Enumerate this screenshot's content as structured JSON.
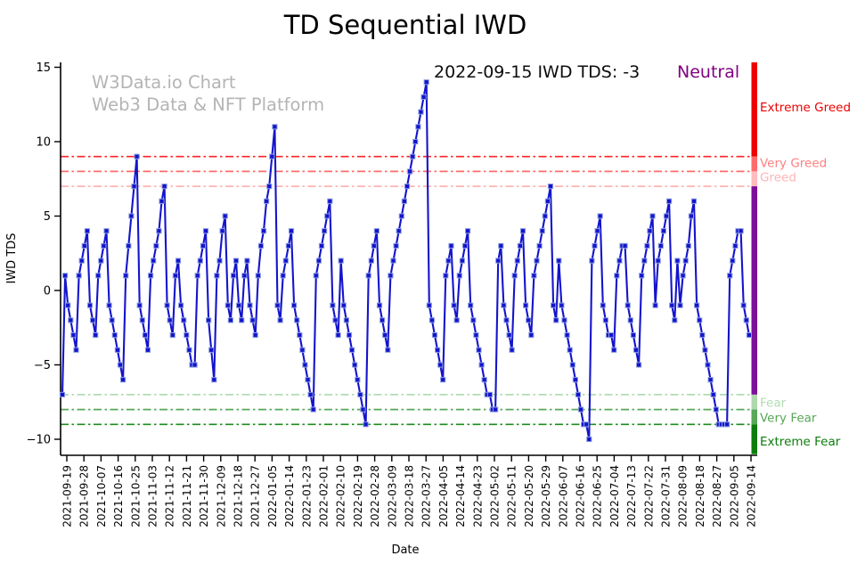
{
  "title": "TD Sequential IWD",
  "watermark": {
    "line1": "W3Data.io Chart",
    "line2": "Web3 Data & NFT Platform",
    "color": "#b4b4b4"
  },
  "annotation": {
    "text": "2022-09-15 IWD TDS: -3",
    "sentiment": "Neutral",
    "sentiment_color": "#800080"
  },
  "axes": {
    "ylabel": "IWD TDS",
    "xlabel": "Date",
    "y_ticks": [
      15,
      10,
      5,
      0,
      -5,
      -10
    ]
  },
  "chart_data": {
    "type": "line",
    "title": "TD Sequential IWD",
    "xlabel": "Date",
    "ylabel": "IWD TDS",
    "ylim": [
      -11,
      15.3
    ],
    "series_color": "#1414cc",
    "marker": "square",
    "marker_edge_color": "#8d9fe0",
    "x_tick_labels": [
      "2021-09-19",
      "2021-09-28",
      "2021-10-07",
      "2021-10-16",
      "2021-10-25",
      "2021-11-03",
      "2021-11-12",
      "2021-11-21",
      "2021-11-30",
      "2021-12-09",
      "2021-12-18",
      "2021-12-27",
      "2022-01-05",
      "2022-01-14",
      "2022-01-23",
      "2022-02-01",
      "2022-02-10",
      "2022-02-19",
      "2022-02-28",
      "2022-03-09",
      "2022-03-18",
      "2022-03-27",
      "2022-04-05",
      "2022-04-14",
      "2022-04-23",
      "2022-05-02",
      "2022-05-11",
      "2022-05-20",
      "2022-05-29",
      "2022-06-07",
      "2022-06-16",
      "2022-06-25",
      "2022-07-04",
      "2022-07-13",
      "2022-07-22",
      "2022-07-31",
      "2022-08-09",
      "2022-08-18",
      "2022-08-27",
      "2022-09-05",
      "2022-09-14"
    ],
    "values": [
      -7,
      1,
      -1,
      -2,
      -3,
      -4,
      1,
      2,
      3,
      4,
      -1,
      -2,
      -3,
      1,
      2,
      3,
      4,
      -1,
      -2,
      -3,
      -4,
      -5,
      -6,
      1,
      3,
      5,
      7,
      9,
      -1,
      -2,
      -3,
      -4,
      1,
      2,
      3,
      4,
      6,
      7,
      -1,
      -2,
      -3,
      1,
      2,
      -1,
      -2,
      -3,
      -4,
      -5,
      -5,
      1,
      2,
      3,
      4,
      -2,
      -4,
      -6,
      1,
      2,
      4,
      5,
      -1,
      -2,
      1,
      2,
      -1,
      -2,
      1,
      2,
      -1,
      -2,
      -3,
      1,
      3,
      4,
      6,
      7,
      9,
      11,
      -1,
      -2,
      1,
      2,
      3,
      4,
      -1,
      -2,
      -3,
      -4,
      -5,
      -6,
      -7,
      -8,
      1,
      2,
      3,
      4,
      5,
      6,
      -1,
      -2,
      -3,
      2,
      -1,
      -2,
      -3,
      -4,
      -5,
      -6,
      -7,
      -8,
      -9,
      1,
      2,
      3,
      4,
      -1,
      -2,
      -3,
      -4,
      1,
      2,
      3,
      4,
      5,
      6,
      7,
      8,
      9,
      10,
      11,
      12,
      13,
      14,
      -1,
      -2,
      -3,
      -4,
      -5,
      -6,
      1,
      2,
      3,
      -1,
      -2,
      1,
      2,
      3,
      4,
      -1,
      -2,
      -3,
      -4,
      -5,
      -6,
      -7,
      -7,
      -8,
      -8,
      2,
      3,
      -1,
      -2,
      -3,
      -4,
      1,
      2,
      3,
      4,
      -1,
      -2,
      -3,
      1,
      2,
      3,
      4,
      5,
      6,
      7,
      -1,
      -2,
      2,
      -1,
      -2,
      -3,
      -4,
      -5,
      -6,
      -7,
      -8,
      -9,
      -9,
      -10,
      2,
      3,
      4,
      5,
      -1,
      -2,
      -3,
      -3,
      -4,
      1,
      2,
      3,
      3,
      -1,
      -2,
      -3,
      -4,
      -5,
      1,
      2,
      3,
      4,
      5,
      -1,
      2,
      3,
      4,
      5,
      6,
      -1,
      -2,
      2,
      -1,
      1,
      2,
      3,
      5,
      6,
      -1,
      -2,
      -3,
      -4,
      -5,
      -6,
      -7,
      -8,
      -9,
      -9,
      -9,
      -9,
      1,
      2,
      3,
      4,
      4,
      -1,
      -2,
      -3
    ],
    "thresholds": [
      {
        "value": 9,
        "color": "#ff2222"
      },
      {
        "value": 8,
        "color": "#ff6b6b"
      },
      {
        "value": 7,
        "color": "#ffb4b4"
      },
      {
        "value": -7,
        "color": "#b2dcb2"
      },
      {
        "value": -8,
        "color": "#57a857"
      },
      {
        "value": -9,
        "color": "#1d8c1d"
      }
    ],
    "zones": [
      {
        "label": "Extreme Greed",
        "color": "#ee0000",
        "y_value": 12.3
      },
      {
        "label": "Very Greed",
        "color": "#ff7f7f",
        "y_value": 8.55
      },
      {
        "label": "Greed",
        "color": "#ffb4b4",
        "y_value": 7.6
      },
      {
        "label": "Fear",
        "color": "#b2dcb2",
        "y_value": -7.55
      },
      {
        "label": "Very Fear",
        "color": "#57a857",
        "y_value": -8.55
      },
      {
        "label": "Extreme Fear",
        "color": "#0a7d0a",
        "y_value": -10.15
      }
    ],
    "bar_segments": [
      {
        "from": 9,
        "to": 15.33,
        "color": "#ee0000"
      },
      {
        "from": 8,
        "to": 9,
        "color": "#ff6b6b"
      },
      {
        "from": 7,
        "to": 8,
        "color": "#ffbcbc"
      },
      {
        "from": -7,
        "to": 7,
        "color": "#7d0f9b"
      },
      {
        "from": -8,
        "to": -7,
        "color": "#aed8ae"
      },
      {
        "from": -9,
        "to": -8,
        "color": "#57a857"
      },
      {
        "from": -11,
        "to": -9,
        "color": "#0a7d0a"
      }
    ],
    "legend_position": "none",
    "grid": false
  }
}
